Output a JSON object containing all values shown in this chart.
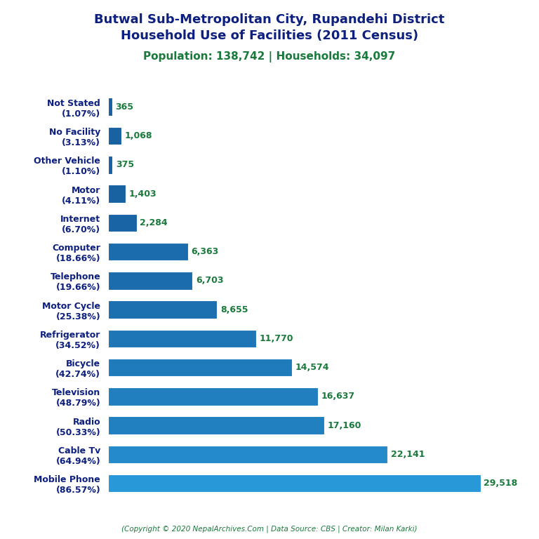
{
  "title_line1": "Butwal Sub-Metropolitan City, Rupandehi District",
  "title_line2": "Household Use of Facilities (2011 Census)",
  "subtitle": "Population: 138,742 | Households: 34,097",
  "footer": "(Copyright © 2020 NepalArchives.Com | Data Source: CBS | Creator: Milan Karki)",
  "categories": [
    "Not Stated\n(1.07%)",
    "No Facility\n(3.13%)",
    "Other Vehicle\n(1.10%)",
    "Motor\n(4.11%)",
    "Internet\n(6.70%)",
    "Computer\n(18.66%)",
    "Telephone\n(19.66%)",
    "Motor Cycle\n(25.38%)",
    "Refrigerator\n(34.52%)",
    "Bicycle\n(42.74%)",
    "Television\n(48.79%)",
    "Radio\n(50.33%)",
    "Cable Tv\n(64.94%)",
    "Mobile Phone\n(86.57%)"
  ],
  "values": [
    365,
    1068,
    375,
    1403,
    2284,
    6363,
    6703,
    8655,
    11770,
    14574,
    16637,
    17160,
    22141,
    29518
  ],
  "title_color": "#0d2080",
  "subtitle_color": "#1a7a3c",
  "label_color": "#0d2080",
  "value_color": "#1a7a3c",
  "footer_color": "#1a7a3c",
  "background_color": "#ffffff",
  "xlim": [
    0,
    32000
  ],
  "figsize": [
    7.68,
    7.68
  ],
  "dpi": 100,
  "bar_height": 0.62,
  "label_fontsize": 9,
  "value_fontsize": 9,
  "title_fontsize": 13,
  "subtitle_fontsize": 11
}
